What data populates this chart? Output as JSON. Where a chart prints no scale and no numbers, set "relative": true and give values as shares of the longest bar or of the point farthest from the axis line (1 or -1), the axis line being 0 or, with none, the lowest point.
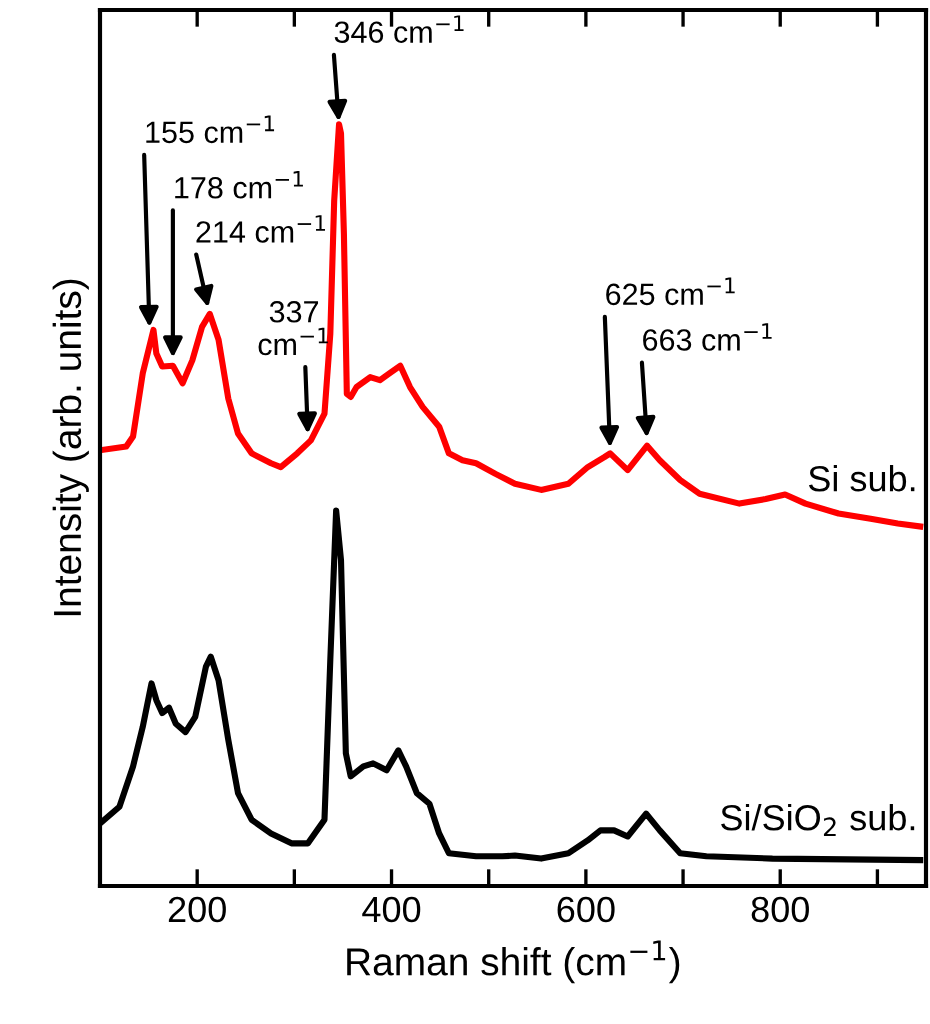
{
  "chart_data": {
    "type": "line",
    "relative": true,
    "xlabel": "Raman shift (cm$^{−1}$)",
    "ylabel": "Intensity (arb. units)",
    "xlim": [
      100,
      950
    ],
    "xticks": [
      {
        "value": 100,
        "label": null
      },
      200,
      {
        "value": 300,
        "label": null
      },
      400,
      {
        "value": 500,
        "label": null
      },
      600,
      {
        "value": 700,
        "label": null
      },
      800,
      {
        "value": 900,
        "label": null
      }
    ],
    "tick_labels": "x",
    "grid": false,
    "legend": false,
    "marker": "none",
    "line_style": "solid",
    "series": [
      {
        "name": "Si sub.",
        "color": "#ff0000",
        "x": [
          100,
          127,
          134,
          144,
          155,
          158,
          164,
          175,
          185,
          195,
          205,
          213,
          222,
          232,
          242,
          256,
          276,
          286,
          303,
          317,
          331,
          337,
          341,
          346,
          348,
          351,
          354,
          358,
          364,
          378,
          388,
          398,
          409,
          419,
          432,
          449,
          459,
          473,
          487,
          507,
          527,
          554,
          582,
          602,
          619,
          625,
          643,
          663,
          676,
          697,
          717,
          758,
          785,
          805,
          826,
          860,
          893,
          921,
          944
        ],
        "values": [
          0.572,
          0.577,
          0.59,
          0.673,
          0.73,
          0.699,
          0.682,
          0.683,
          0.66,
          0.69,
          0.734,
          0.751,
          0.717,
          0.64,
          0.594,
          0.568,
          0.555,
          0.55,
          0.568,
          0.585,
          0.62,
          0.725,
          0.9,
          1.0,
          0.988,
          0.856,
          0.646,
          0.642,
          0.655,
          0.668,
          0.664,
          0.673,
          0.683,
          0.655,
          0.629,
          0.603,
          0.568,
          0.559,
          0.555,
          0.541,
          0.528,
          0.52,
          0.528,
          0.55,
          0.563,
          0.568,
          0.546,
          0.578,
          0.559,
          0.533,
          0.515,
          0.502,
          0.508,
          0.514,
          0.502,
          0.489,
          0.482,
          0.476,
          0.472
        ]
      },
      {
        "name": "Si/SiO$_{2}$ sub.",
        "color": "#000000",
        "x": [
          100,
          120,
          134,
          144,
          153,
          158,
          164,
          171,
          178,
          188,
          198,
          209,
          214,
          222,
          232,
          242,
          256,
          276,
          297,
          314,
          331,
          337,
          343,
          348,
          353,
          358,
          371,
          381,
          395,
          407,
          415,
          426,
          439,
          449,
          459,
          487,
          514,
          527,
          554,
          582,
          602,
          615,
          629,
          643,
          662,
          676,
          697,
          724,
          792,
          944
        ],
        "values": [
          0.082,
          0.104,
          0.157,
          0.209,
          0.266,
          0.244,
          0.227,
          0.234,
          0.213,
          0.202,
          0.222,
          0.288,
          0.301,
          0.27,
          0.192,
          0.122,
          0.087,
          0.069,
          0.056,
          0.056,
          0.087,
          0.297,
          0.493,
          0.428,
          0.174,
          0.144,
          0.157,
          0.161,
          0.152,
          0.178,
          0.157,
          0.122,
          0.108,
          0.069,
          0.043,
          0.039,
          0.039,
          0.04,
          0.036,
          0.043,
          0.06,
          0.073,
          0.073,
          0.065,
          0.095,
          0.073,
          0.043,
          0.039,
          0.036,
          0.034
        ]
      }
    ],
    "annotations": [
      {
        "text": "155 cm$^{−1}$",
        "x": 151,
        "y": 0.73
      },
      {
        "text": "178 cm$^{−1}$",
        "x": 175,
        "y": 0.69
      },
      {
        "text": "214 cm$^{−1}$",
        "x": 212,
        "y": 0.756
      },
      {
        "text": "337\ncm$^{−1}$",
        "x": 314,
        "y": 0.59
      },
      {
        "text": "346 cm$^{−1}$",
        "x": 346,
        "y": 1.0
      },
      {
        "text": "625 cm$^{−1}$",
        "x": 625,
        "y": 0.572
      },
      {
        "text": "663 cm$^{−1}$",
        "x": 663,
        "y": 0.585
      }
    ]
  }
}
